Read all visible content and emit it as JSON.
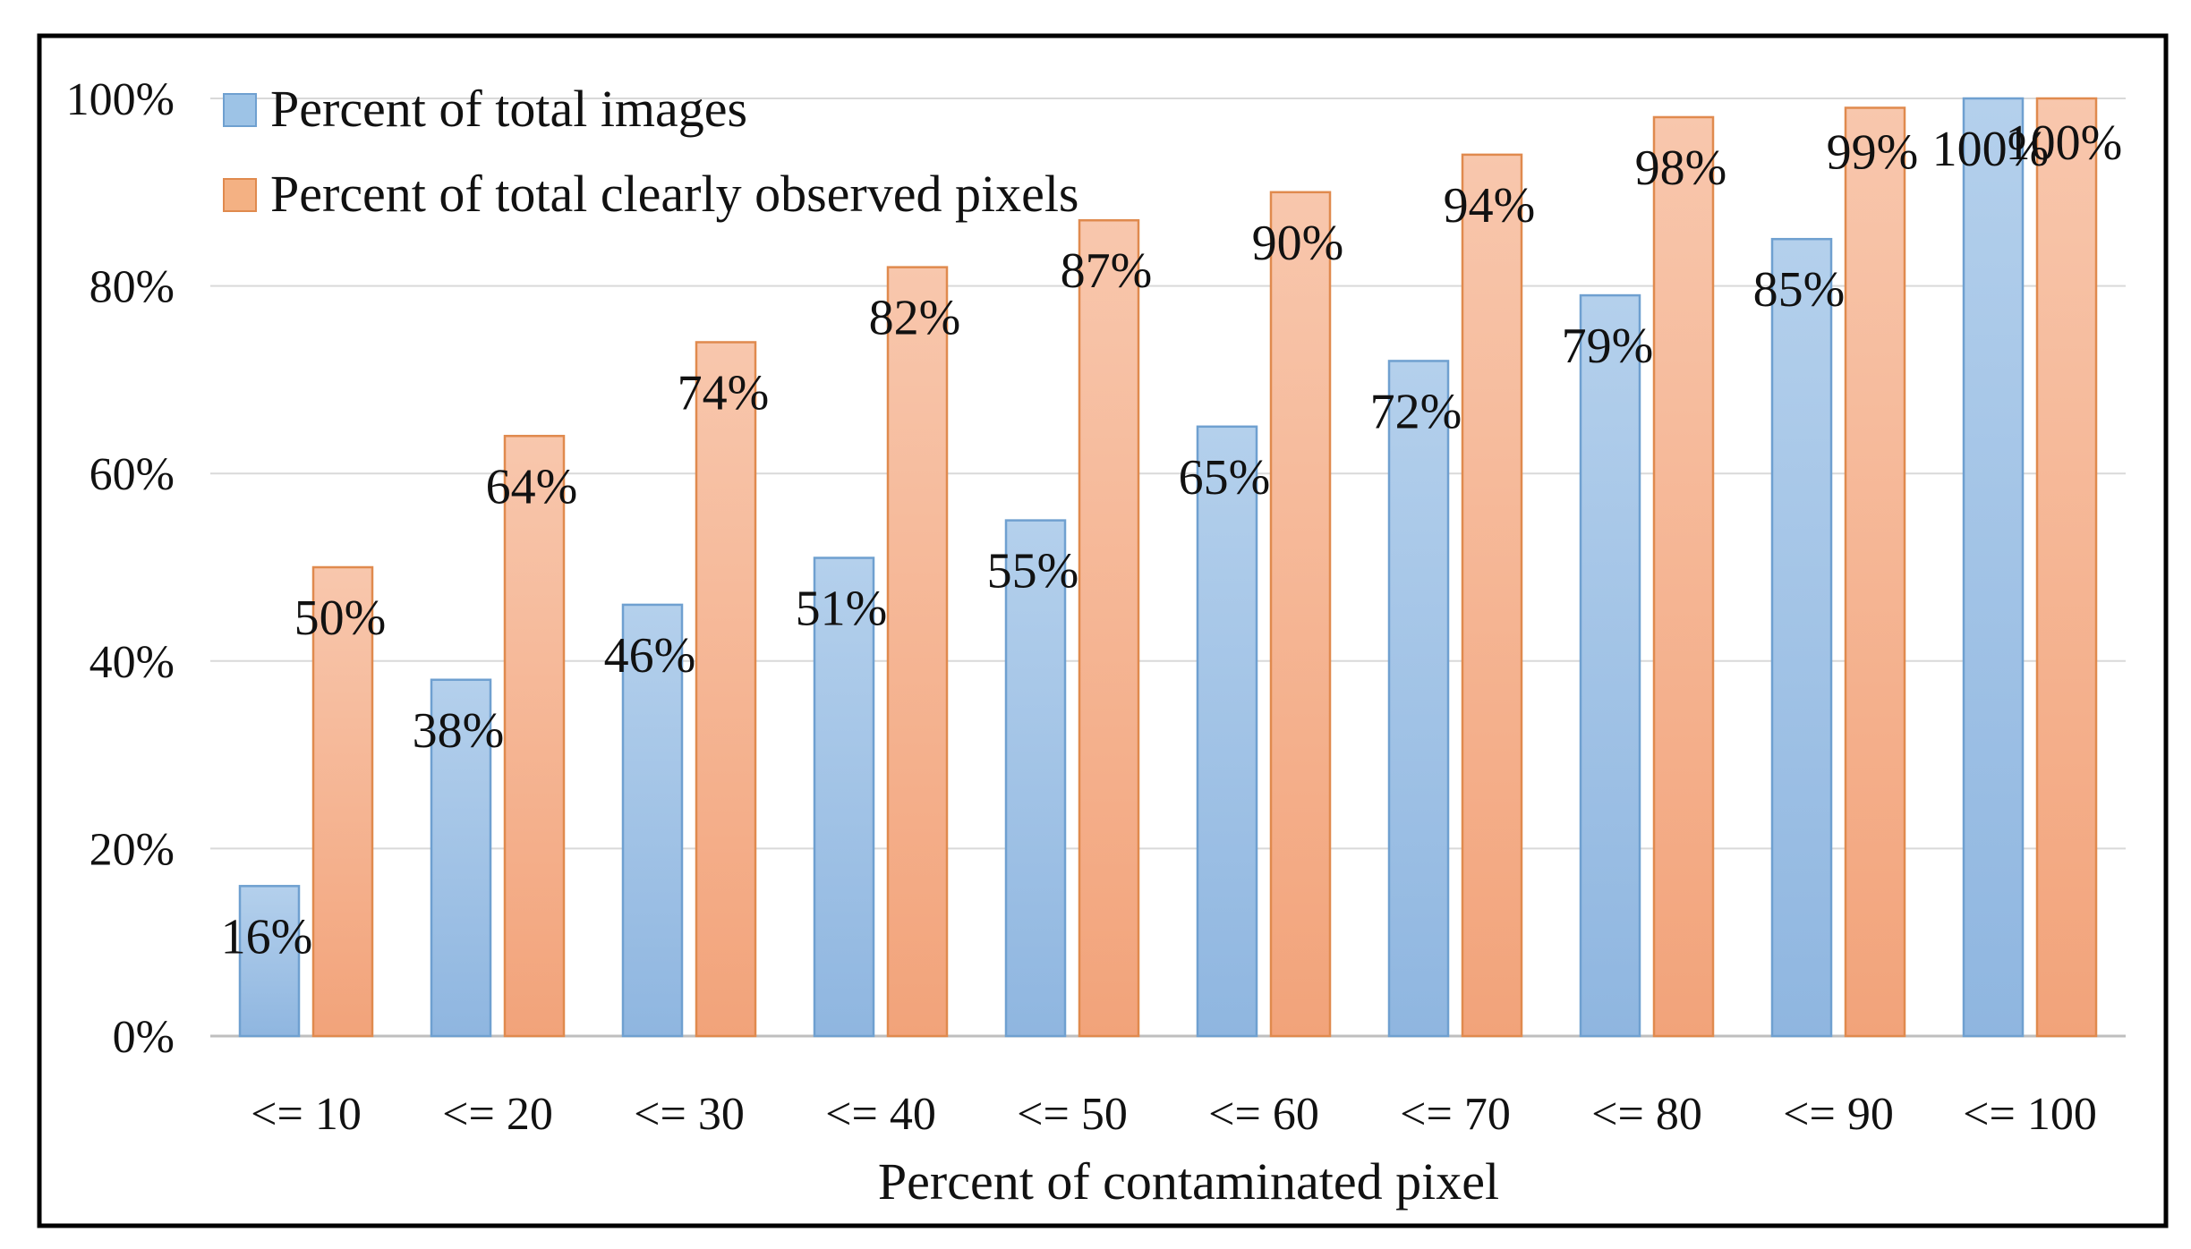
{
  "chart_data": {
    "type": "bar",
    "categories": [
      "<= 10",
      "<= 20",
      "<= 30",
      "<= 40",
      "<= 50",
      "<= 60",
      "<= 70",
      "<= 80",
      "<= 90",
      "<= 100"
    ],
    "series": [
      {
        "name": "Percent of total images",
        "values": [
          16,
          38,
          46,
          51,
          55,
          65,
          72,
          79,
          85,
          100
        ],
        "labels": [
          "16%",
          "38%",
          "46%",
          "51%",
          "55%",
          "65%",
          "72%",
          "79%",
          "85%",
          "100%"
        ],
        "color": "#9dc3e6",
        "stroke": "#6fa0d0"
      },
      {
        "name": "Percent of total clearly observed pixels",
        "values": [
          50,
          64,
          74,
          82,
          87,
          90,
          94,
          98,
          99,
          100
        ],
        "labels": [
          "50%",
          "64%",
          "74%",
          "82%",
          "87%",
          "90%",
          "94%",
          "98%",
          "99%",
          "100%"
        ],
        "color": "#f4b183",
        "stroke": "#e08a4e"
      }
    ],
    "xlabel": "Percent of contaminated pixel",
    "ylabel": "",
    "ylim": [
      0,
      100
    ],
    "yticks": [
      "0%",
      "20%",
      "40%",
      "60%",
      "80%",
      "100%"
    ],
    "ytick_values": [
      0,
      20,
      40,
      60,
      80,
      100
    ],
    "grid": true,
    "legend": "top-left"
  }
}
